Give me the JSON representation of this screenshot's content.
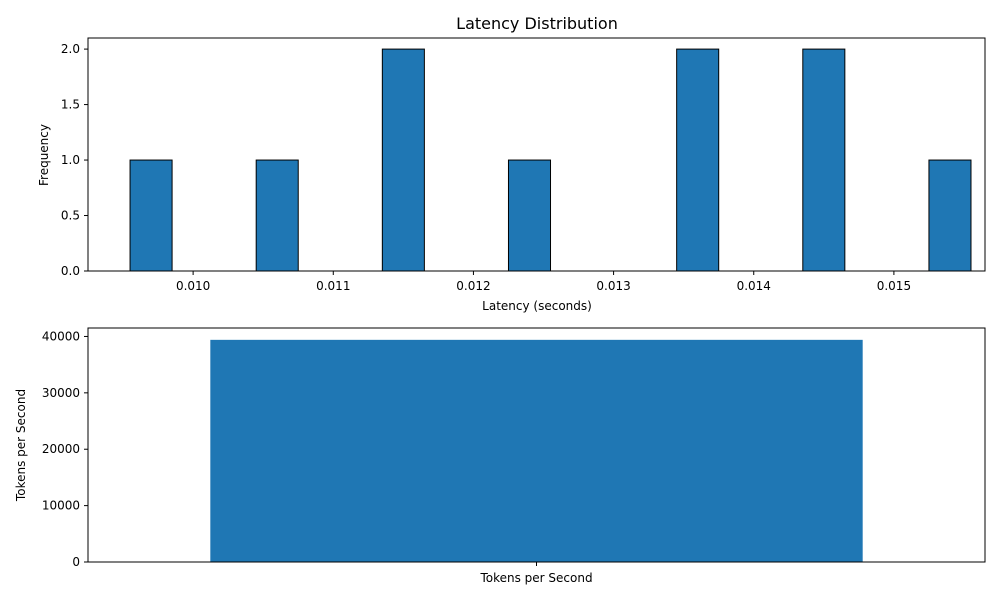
{
  "chart_data": [
    {
      "type": "bar",
      "chart_kind": "histogram",
      "title": "Latency Distribution",
      "xlabel": "Latency (seconds)",
      "ylabel": "Frequency",
      "xlim": [
        0.00925,
        0.01565
      ],
      "ylim": [
        0,
        2.1
      ],
      "x_ticks": [
        0.01,
        0.011,
        0.012,
        0.013,
        0.014,
        0.015
      ],
      "x_tick_labels": [
        "0.010",
        "0.011",
        "0.012",
        "0.013",
        "0.014",
        "0.015"
      ],
      "y_ticks": [
        0,
        0.5,
        1.0,
        1.5,
        2.0
      ],
      "y_tick_labels": [
        "0.0",
        "0.5",
        "1.0",
        "1.5",
        "2.0"
      ],
      "bin_edges": [
        0.00955,
        0.00985,
        0.01015,
        0.01045,
        0.01075,
        0.01105,
        0.01135,
        0.01165,
        0.01195,
        0.01225,
        0.01255,
        0.01285,
        0.01315,
        0.01345,
        0.01375,
        0.01405,
        0.01435,
        0.01465,
        0.01495,
        0.01525,
        0.01555
      ],
      "values": [
        1,
        0,
        0,
        1,
        0,
        0,
        2,
        0,
        0,
        1,
        0,
        0,
        0,
        2,
        0,
        0,
        2,
        0,
        0,
        1
      ],
      "grid": false,
      "bar_color": "#1f77b4",
      "edge_color": "#000000"
    },
    {
      "type": "bar",
      "title": "",
      "xlabel": "",
      "ylabel": "Tokens per Second",
      "categories": [
        "Tokens per Second"
      ],
      "values": [
        39400
      ],
      "ylim": [
        0,
        41500
      ],
      "y_ticks": [
        0,
        10000,
        20000,
        30000,
        40000
      ],
      "y_tick_labels": [
        "0",
        "10000",
        "20000",
        "30000",
        "40000"
      ],
      "grid": false,
      "bar_color": "#1f77b4"
    }
  ]
}
